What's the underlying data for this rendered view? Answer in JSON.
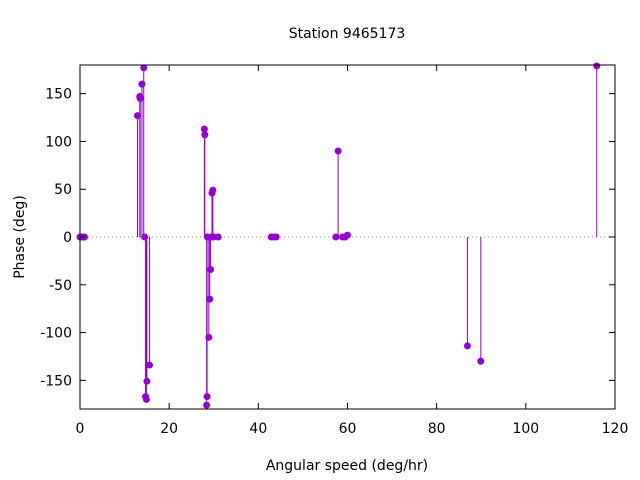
{
  "chart_data": {
    "type": "scatter",
    "style": "impulses-with-points",
    "title": "Station 9465173",
    "xlabel": "Angular speed (deg/hr)",
    "ylabel": "Phase (deg)",
    "xlim": [
      0,
      120
    ],
    "ylim": [
      -180,
      180
    ],
    "xticks": [
      "0",
      "20",
      "40",
      "60",
      "80",
      "100",
      "120"
    ],
    "yticks": [
      "-150",
      "-100",
      "-50",
      "0",
      "50",
      "100",
      "150"
    ],
    "grid": false,
    "zero_line": "dotted",
    "color": "#9400d3",
    "series": [
      {
        "x": [
          0.0,
          0.5,
          0.8,
          1.0,
          12.9,
          13.4,
          13.5,
          13.9,
          14.3,
          14.5,
          14.7,
          14.9,
          15.0,
          15.6,
          27.9,
          28.0,
          28.4,
          28.5,
          28.6,
          28.9,
          29.1,
          29.3,
          29.5,
          29.6,
          29.8,
          30.0,
          31.0,
          42.9,
          43.5,
          44.0,
          57.4,
          57.9,
          58.9,
          59.5,
          60.0,
          86.9,
          89.9,
          115.9
        ],
        "y": [
          0,
          0,
          0,
          0,
          127,
          147,
          145,
          160,
          177,
          0,
          -167,
          -170,
          -151,
          -134,
          113,
          107,
          -176,
          -167,
          0,
          -105,
          -65,
          -34,
          0,
          46,
          49,
          0,
          0,
          0,
          0,
          0,
          0,
          90,
          0,
          0,
          2,
          -114,
          -130,
          179
        ]
      }
    ]
  }
}
